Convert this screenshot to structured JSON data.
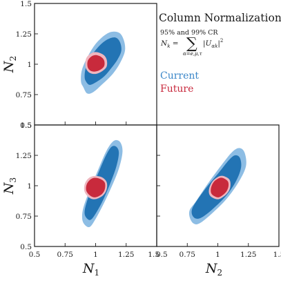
{
  "chart_data": {
    "type": "contour",
    "title": "Column Normalizations",
    "subtitle": "95% and 99% CR",
    "annotation": "N_k = Σ_{α=e,μ,τ} |U_{αk}|²",
    "legend": [
      {
        "name": "Current",
        "color_outer": "#8dbde4",
        "color_inner": "#2374b4",
        "text_color": "#3a86c8"
      },
      {
        "name": "Future",
        "color_outer": "#efb6bf",
        "color_inner": "#c82a3c",
        "text_color": "#c8283c"
      }
    ],
    "axis_range": [
      0.5,
      1.5
    ],
    "ticks": [
      "0.5",
      "0.75",
      "1",
      "1.25",
      "1.5"
    ],
    "panels": [
      {
        "name": "N1-N2",
        "x_param": "N",
        "x_sub": "1",
        "y_param": "N",
        "y_sub": "2",
        "show_x_ticks": false,
        "show_y_ticks": true,
        "show_x_label": false,
        "show_y_label": true,
        "regions": [
          {
            "series": "Current",
            "level": "99%",
            "points": [
              [
                0.9,
                0.81
              ],
              [
                0.93,
                0.76
              ],
              [
                0.98,
                0.77
              ],
              [
                1.06,
                0.84
              ],
              [
                1.14,
                0.92
              ],
              [
                1.2,
                1.01
              ],
              [
                1.24,
                1.11
              ],
              [
                1.23,
                1.2
              ],
              [
                1.19,
                1.26
              ],
              [
                1.11,
                1.26
              ],
              [
                1.02,
                1.19
              ],
              [
                0.95,
                1.09
              ],
              [
                0.89,
                0.96
              ],
              [
                0.88,
                0.86
              ]
            ]
          },
          {
            "series": "Current",
            "level": "95%",
            "points": [
              [
                0.92,
                0.86
              ],
              [
                0.95,
                0.83
              ],
              [
                1.0,
                0.85
              ],
              [
                1.07,
                0.9
              ],
              [
                1.13,
                0.97
              ],
              [
                1.18,
                1.04
              ],
              [
                1.21,
                1.11
              ],
              [
                1.2,
                1.18
              ],
              [
                1.16,
                1.22
              ],
              [
                1.09,
                1.2
              ],
              [
                1.02,
                1.14
              ],
              [
                0.96,
                1.06
              ],
              [
                0.92,
                0.97
              ],
              [
                0.91,
                0.9
              ]
            ]
          },
          {
            "series": "Future",
            "level": "99%",
            "points": [
              [
                0.92,
                0.97
              ],
              [
                0.95,
                0.93
              ],
              [
                1.0,
                0.92
              ],
              [
                1.05,
                0.94
              ],
              [
                1.09,
                0.98
              ],
              [
                1.09,
                1.04
              ],
              [
                1.06,
                1.08
              ],
              [
                1.0,
                1.1
              ],
              [
                0.95,
                1.08
              ],
              [
                0.92,
                1.04
              ]
            ]
          },
          {
            "series": "Future",
            "level": "95%",
            "points": [
              [
                0.935,
                0.975
              ],
              [
                0.96,
                0.945
              ],
              [
                1.0,
                0.94
              ],
              [
                1.04,
                0.955
              ],
              [
                1.07,
                0.985
              ],
              [
                1.07,
                1.03
              ],
              [
                1.045,
                1.06
              ],
              [
                1.0,
                1.075
              ],
              [
                0.96,
                1.06
              ],
              [
                0.935,
                1.025
              ]
            ]
          }
        ]
      },
      {
        "name": "N1-N3",
        "x_param": "N",
        "x_sub": "1",
        "y_param": "N",
        "y_sub": "3",
        "show_x_ticks": true,
        "show_y_ticks": true,
        "show_x_label": true,
        "show_y_label": true,
        "regions": [
          {
            "series": "Current",
            "level": "99%",
            "points": [
              [
                0.91,
                0.68
              ],
              [
                0.95,
                0.66
              ],
              [
                0.99,
                0.71
              ],
              [
                1.06,
                0.84
              ],
              [
                1.13,
                0.99
              ],
              [
                1.19,
                1.14
              ],
              [
                1.22,
                1.28
              ],
              [
                1.2,
                1.36
              ],
              [
                1.15,
                1.37
              ],
              [
                1.09,
                1.29
              ],
              [
                1.02,
                1.13
              ],
              [
                0.95,
                0.96
              ],
              [
                0.9,
                0.82
              ],
              [
                0.89,
                0.73
              ]
            ]
          },
          {
            "series": "Current",
            "level": "95%",
            "points": [
              [
                0.93,
                0.73
              ],
              [
                0.96,
                0.72
              ],
              [
                1.0,
                0.77
              ],
              [
                1.06,
                0.88
              ],
              [
                1.12,
                1.02
              ],
              [
                1.17,
                1.16
              ],
              [
                1.19,
                1.27
              ],
              [
                1.17,
                1.32
              ],
              [
                1.13,
                1.32
              ],
              [
                1.08,
                1.24
              ],
              [
                1.02,
                1.1
              ],
              [
                0.96,
                0.96
              ],
              [
                0.92,
                0.84
              ],
              [
                0.91,
                0.77
              ]
            ]
          },
          {
            "series": "Future",
            "level": "99%",
            "points": [
              [
                0.91,
                0.95
              ],
              [
                0.95,
                0.9
              ],
              [
                1.0,
                0.89
              ],
              [
                1.06,
                0.92
              ],
              [
                1.09,
                0.97
              ],
              [
                1.09,
                1.03
              ],
              [
                1.05,
                1.07
              ],
              [
                0.99,
                1.08
              ],
              [
                0.94,
                1.06
              ],
              [
                0.91,
                1.01
              ]
            ]
          },
          {
            "series": "Future",
            "level": "95%",
            "points": [
              [
                0.925,
                0.955
              ],
              [
                0.96,
                0.915
              ],
              [
                1.0,
                0.905
              ],
              [
                1.05,
                0.93
              ],
              [
                1.075,
                0.97
              ],
              [
                1.075,
                1.025
              ],
              [
                1.04,
                1.055
              ],
              [
                0.99,
                1.065
              ],
              [
                0.95,
                1.045
              ],
              [
                0.925,
                1.005
              ]
            ]
          }
        ]
      },
      {
        "name": "N2-N3",
        "x_param": "N",
        "x_sub": "2",
        "y_param": "N",
        "y_sub": "3",
        "show_x_ticks": true,
        "show_y_ticks": false,
        "show_x_label": true,
        "show_y_label": false,
        "regions": [
          {
            "series": "Current",
            "level": "99%",
            "points": [
              [
                0.77,
                0.74
              ],
              [
                0.8,
                0.69
              ],
              [
                0.85,
                0.69
              ],
              [
                0.95,
                0.77
              ],
              [
                1.07,
                0.89
              ],
              [
                1.17,
                1.03
              ],
              [
                1.23,
                1.16
              ],
              [
                1.22,
                1.27
              ],
              [
                1.18,
                1.31
              ],
              [
                1.12,
                1.28
              ],
              [
                1.03,
                1.17
              ],
              [
                0.92,
                1.02
              ],
              [
                0.82,
                0.87
              ],
              [
                0.77,
                0.8
              ]
            ]
          },
          {
            "series": "Current",
            "level": "95%",
            "points": [
              [
                0.79,
                0.76
              ],
              [
                0.82,
                0.73
              ],
              [
                0.87,
                0.74
              ],
              [
                0.96,
                0.81
              ],
              [
                1.07,
                0.92
              ],
              [
                1.15,
                1.04
              ],
              [
                1.19,
                1.15
              ],
              [
                1.18,
                1.23
              ],
              [
                1.14,
                1.25
              ],
              [
                1.09,
                1.21
              ],
              [
                1.01,
                1.11
              ],
              [
                0.91,
                0.99
              ],
              [
                0.83,
                0.88
              ],
              [
                0.79,
                0.81
              ]
            ]
          },
          {
            "series": "Future",
            "level": "99%",
            "points": [
              [
                0.93,
                0.93
              ],
              [
                0.96,
                0.9
              ],
              [
                1.01,
                0.89
              ],
              [
                1.07,
                0.93
              ],
              [
                1.1,
                0.98
              ],
              [
                1.1,
                1.04
              ],
              [
                1.07,
                1.07
              ],
              [
                1.02,
                1.08
              ],
              [
                0.96,
                1.04
              ],
              [
                0.93,
                0.98
              ]
            ]
          },
          {
            "series": "Future",
            "level": "95%",
            "points": [
              [
                0.945,
                0.94
              ],
              [
                0.97,
                0.915
              ],
              [
                1.01,
                0.905
              ],
              [
                1.06,
                0.94
              ],
              [
                1.085,
                0.985
              ],
              [
                1.085,
                1.03
              ],
              [
                1.06,
                1.055
              ],
              [
                1.02,
                1.065
              ],
              [
                0.97,
                1.035
              ],
              [
                0.945,
                0.985
              ]
            ]
          }
        ]
      }
    ],
    "grid": false
  }
}
